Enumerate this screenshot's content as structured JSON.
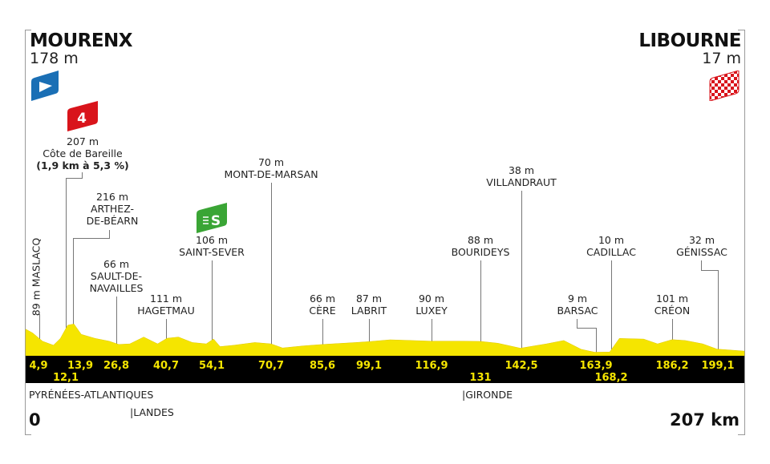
{
  "start": {
    "town": "MOURENX",
    "altitude": "178 m"
  },
  "finish": {
    "town": "LIBOURNE",
    "altitude": "17 m"
  },
  "climb": {
    "category": "4",
    "altitude": "207 m",
    "name": "Côte de Bareille",
    "detail": "(1,9 km à 5,3 %)"
  },
  "sprint": {
    "symbol": "S",
    "altitude": "106 m",
    "name": "SAINT-SEVER"
  },
  "waypoints": [
    {
      "label": "89 m MASLACQ",
      "km": "4,9"
    },
    {
      "label": "",
      "km": "12,1"
    },
    {
      "alt": "216 m",
      "name1": "ARTHEZ-",
      "name2": "DE-BÉARN",
      "km": "13,9"
    },
    {
      "alt": "66 m",
      "name1": "SAULT-DE-",
      "name2": "NAVAILLES",
      "km": "26,8"
    },
    {
      "alt": "111 m",
      "name1": "HAGETMAU",
      "km": "40,7"
    },
    {
      "km": "54,1"
    },
    {
      "alt": "70 m",
      "name1": "MONT-DE-MARSAN",
      "km": "70,7"
    },
    {
      "alt": "66 m",
      "name1": "CÈRE",
      "km": "85,6"
    },
    {
      "alt": "87 m",
      "name1": "LABRIT",
      "km": "99,1"
    },
    {
      "alt": "90 m",
      "name1": "LUXEY",
      "km": "116,9"
    },
    {
      "alt": "88 m",
      "name1": "BOURIDEYS",
      "km": "131"
    },
    {
      "alt": "38 m",
      "name1": "VILLANDRAUT",
      "km": "142,5"
    },
    {
      "alt": "9 m",
      "name1": "BARSAC",
      "km": "163,9"
    },
    {
      "alt": "10 m",
      "name1": "CADILLAC",
      "km": "168,2"
    },
    {
      "alt": "101 m",
      "name1": "CRÉON",
      "km": "186,2"
    },
    {
      "alt": "32 m",
      "name1": "GÉNISSAC",
      "km": "199,1"
    }
  ],
  "regions": [
    "PYRÉNÉES-ATLANTIQUES",
    "|LANDES",
    "|GIRONDE"
  ],
  "distance_start": "0",
  "distance_total": "207 km",
  "colors": {
    "profile": "#f5e500",
    "band": "#000000",
    "start_flag": "#1a6fb5",
    "climb_flag": "#d9141b",
    "sprint_flag": "#3aa535"
  },
  "chart_data": {
    "type": "area",
    "profile_km_elev": [
      [
        0,
        178
      ],
      [
        2,
        150
      ],
      [
        4.9,
        89
      ],
      [
        8,
        60
      ],
      [
        10,
        110
      ],
      [
        12.1,
        207
      ],
      [
        13.9,
        216
      ],
      [
        16,
        140
      ],
      [
        20,
        110
      ],
      [
        24,
        90
      ],
      [
        26.8,
        66
      ],
      [
        30,
        70
      ],
      [
        34,
        120
      ],
      [
        38,
        70
      ],
      [
        40.7,
        111
      ],
      [
        44,
        120
      ],
      [
        48,
        80
      ],
      [
        52,
        70
      ],
      [
        54.1,
        106
      ],
      [
        56,
        50
      ],
      [
        60,
        60
      ],
      [
        66,
        80
      ],
      [
        70.7,
        70
      ],
      [
        74,
        40
      ],
      [
        80,
        55
      ],
      [
        85.6,
        66
      ],
      [
        95,
        80
      ],
      [
        99.1,
        87
      ],
      [
        105,
        100
      ],
      [
        116.9,
        90
      ],
      [
        125,
        90
      ],
      [
        131,
        88
      ],
      [
        136,
        75
      ],
      [
        142.5,
        38
      ],
      [
        150,
        70
      ],
      [
        155,
        95
      ],
      [
        160,
        30
      ],
      [
        163.9,
        9
      ],
      [
        168.2,
        10
      ],
      [
        171,
        110
      ],
      [
        178,
        105
      ],
      [
        182,
        70
      ],
      [
        186.2,
        101
      ],
      [
        190,
        95
      ],
      [
        195,
        70
      ],
      [
        199.1,
        32
      ],
      [
        207,
        17
      ]
    ],
    "xlim": [
      0,
      207
    ]
  }
}
